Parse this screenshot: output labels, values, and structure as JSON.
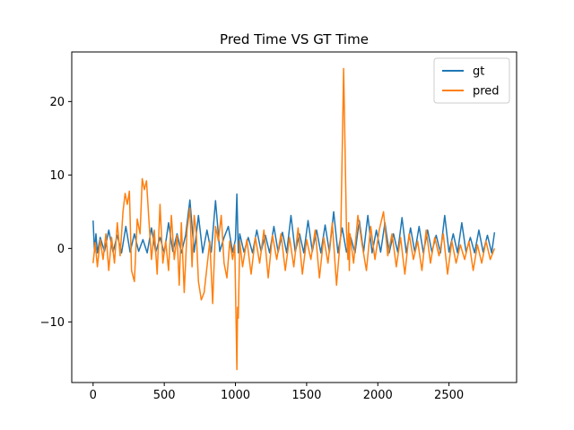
{
  "chart_data": {
    "type": "line",
    "title": "Pred Time VS GT Time",
    "xlabel": "",
    "ylabel": "",
    "xlim": [
      -150,
      2975
    ],
    "ylim": [
      -18.25,
      26.75
    ],
    "xticks": [
      0,
      500,
      1000,
      1500,
      2000,
      2500
    ],
    "yticks": [
      -10,
      0,
      10,
      20
    ],
    "grid": false,
    "legend": "upper-right",
    "colors": {
      "gt": "#1f77b4",
      "pred": "#ff7f0e",
      "axes": "#000000",
      "background": "#ffffff"
    },
    "series": [
      {
        "name": "gt",
        "color": "#1f77b4",
        "x": [
          0,
          10,
          20,
          30,
          50,
          80,
          110,
          140,
          170,
          200,
          230,
          260,
          290,
          320,
          350,
          380,
          410,
          440,
          470,
          500,
          530,
          560,
          590,
          620,
          650,
          680,
          710,
          740,
          770,
          800,
          830,
          860,
          890,
          920,
          950,
          980,
          1000,
          1010,
          1020,
          1030,
          1060,
          1090,
          1120,
          1150,
          1180,
          1210,
          1240,
          1270,
          1300,
          1330,
          1360,
          1390,
          1420,
          1450,
          1480,
          1510,
          1540,
          1570,
          1600,
          1630,
          1660,
          1690,
          1720,
          1750,
          1780,
          1810,
          1840,
          1870,
          1900,
          1930,
          1960,
          1990,
          2020,
          2050,
          2080,
          2110,
          2140,
          2170,
          2200,
          2230,
          2260,
          2290,
          2320,
          2350,
          2380,
          2410,
          2440,
          2470,
          2500,
          2530,
          2560,
          2590,
          2620,
          2650,
          2680,
          2710,
          2740,
          2770,
          2800,
          2820
        ],
        "y": [
          3.8,
          -0.5,
          2.0,
          -0.6,
          1.5,
          -0.4,
          2.5,
          -0.5,
          1.8,
          -0.6,
          3.0,
          -0.5,
          2.0,
          -0.4,
          1.2,
          -0.6,
          2.8,
          -0.5,
          1.5,
          -0.6,
          3.5,
          -0.4,
          2.0,
          -0.6,
          1.8,
          6.6,
          -0.5,
          4.5,
          -0.6,
          2.5,
          -0.5,
          6.5,
          -0.4,
          1.5,
          3.0,
          -0.5,
          1.2,
          7.4,
          -0.6,
          2.0,
          -0.5,
          1.5,
          -0.6,
          2.5,
          -0.4,
          1.8,
          -0.6,
          3.0,
          -0.5,
          2.2,
          -0.6,
          4.5,
          -0.5,
          2.0,
          -0.6,
          3.8,
          -0.4,
          2.5,
          -0.6,
          3.2,
          -0.5,
          5.0,
          -0.6,
          2.8,
          -0.5,
          1.5,
          -0.6,
          3.8,
          -0.5,
          4.5,
          -0.6,
          2.5,
          -0.5,
          3.5,
          -0.6,
          2.0,
          -0.5,
          4.2,
          -0.6,
          2.8,
          -0.5,
          3.0,
          -0.6,
          2.5,
          -0.5,
          1.8,
          -0.6,
          4.5,
          -0.5,
          2.0,
          -0.6,
          3.5,
          -0.5,
          1.5,
          -0.6,
          2.5,
          -0.5,
          1.8,
          -0.6,
          2.2
        ]
      },
      {
        "name": "pred",
        "color": "#ff7f0e",
        "x": [
          0,
          15,
          30,
          50,
          70,
          90,
          110,
          130,
          150,
          170,
          190,
          210,
          225,
          240,
          255,
          270,
          290,
          310,
          330,
          345,
          360,
          375,
          390,
          410,
          430,
          450,
          470,
          490,
          510,
          530,
          550,
          570,
          590,
          605,
          620,
          640,
          660,
          680,
          695,
          710,
          725,
          740,
          760,
          780,
          800,
          820,
          840,
          860,
          880,
          900,
          920,
          940,
          960,
          980,
          995,
          1005,
          1010,
          1015,
          1020,
          1030,
          1050,
          1080,
          1110,
          1140,
          1170,
          1200,
          1230,
          1260,
          1290,
          1320,
          1350,
          1380,
          1410,
          1440,
          1470,
          1500,
          1530,
          1560,
          1590,
          1620,
          1650,
          1680,
          1710,
          1740,
          1760,
          1780,
          1790,
          1795,
          1800,
          1805,
          1810,
          1830,
          1860,
          1890,
          1920,
          1950,
          1980,
          2010,
          2040,
          2070,
          2100,
          2130,
          2160,
          2190,
          2220,
          2250,
          2280,
          2310,
          2340,
          2370,
          2400,
          2430,
          2460,
          2490,
          2520,
          2550,
          2580,
          2610,
          2640,
          2670,
          2700,
          2730,
          2760,
          2790,
          2820
        ],
        "y": [
          -2.0,
          0.8,
          -2.5,
          1.2,
          -1.5,
          2.0,
          -3.0,
          1.5,
          -2.0,
          3.5,
          -1.0,
          5.0,
          7.5,
          6.0,
          7.8,
          -3.0,
          -4.5,
          4.0,
          2.0,
          9.5,
          8.0,
          9.2,
          4.5,
          -1.5,
          2.5,
          -3.5,
          6.0,
          -2.0,
          1.0,
          -3.0,
          4.5,
          -1.5,
          1.8,
          -5.0,
          3.5,
          -6.0,
          2.5,
          5.5,
          -2.5,
          4.5,
          2.0,
          -4.5,
          -7.0,
          -6.0,
          -2.5,
          1.0,
          -7.5,
          3.0,
          1.0,
          4.5,
          -2.0,
          -4.0,
          1.0,
          -1.5,
          0.5,
          -10.5,
          -16.5,
          -8.0,
          -9.5,
          1.0,
          -2.5,
          1.2,
          -3.5,
          1.5,
          -2.0,
          2.5,
          -4.0,
          1.8,
          -1.5,
          2.0,
          -3.0,
          1.5,
          -2.5,
          2.8,
          -3.5,
          1.2,
          -1.5,
          2.5,
          -4.0,
          1.5,
          -2.0,
          3.5,
          -5.0,
          2.0,
          24.5,
          2.5,
          -1.5,
          3.5,
          -3.0,
          2.0,
          1.0,
          -2.0,
          4.5,
          0.5,
          -3.0,
          3.0,
          -1.5,
          2.5,
          5.0,
          -1.0,
          2.0,
          -2.5,
          1.5,
          -3.5,
          2.0,
          -1.5,
          1.0,
          -3.0,
          2.5,
          -2.0,
          1.5,
          -1.0,
          2.0,
          -3.5,
          1.0,
          -2.0,
          0.5,
          -1.5,
          1.0,
          -3.0,
          0.5,
          -2.0,
          1.0,
          -1.5,
          0.0
        ]
      }
    ]
  }
}
